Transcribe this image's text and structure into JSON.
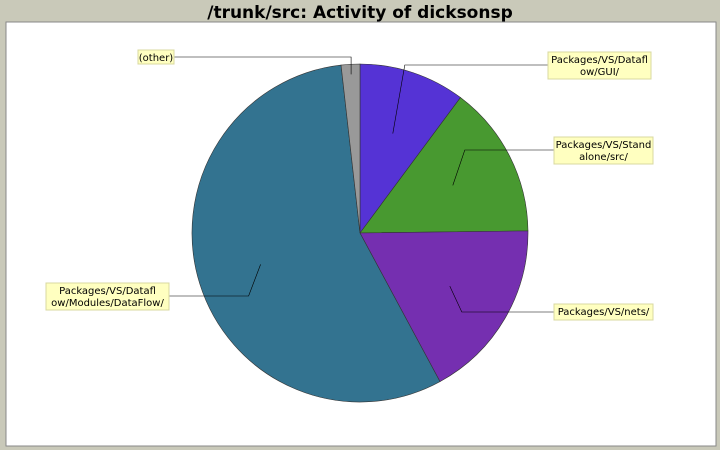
{
  "chart_data": {
    "type": "pie",
    "title": "/trunk/src: Activity of dicksonsp",
    "slices": [
      {
        "label": "Packages/VS/Dataflow/GUI/",
        "value": 10.2,
        "color": "#5533d5"
      },
      {
        "label": "Packages/VS/Standalone/src/",
        "value": 14.6,
        "color": "#489930"
      },
      {
        "label": "Packages/VS/nets/",
        "value": 17.3,
        "color": "#752fb0"
      },
      {
        "label": "Packages/VS/Dataflow/Modules/DataFlow/",
        "value": 56.1,
        "color": "#337390"
      },
      {
        "label": "(other)",
        "value": 1.8,
        "color": "#999999"
      }
    ],
    "legend": "callout labels around pie"
  },
  "callouts": [
    {
      "lines": [
        "Packages/VS/Datafl",
        "ow/GUI/"
      ]
    },
    {
      "lines": [
        "Packages/VS/Stand",
        "alone/src/"
      ]
    },
    {
      "lines": [
        "Packages/VS/nets/"
      ]
    },
    {
      "lines": [
        "Packages/VS/Datafl",
        "ow/Modules/DataFlow/"
      ]
    },
    {
      "lines": [
        "(other)"
      ]
    }
  ],
  "colors": {
    "background": "#c9c9b9",
    "plot_background": "#ffffff",
    "label_background": "#ffffc0"
  }
}
